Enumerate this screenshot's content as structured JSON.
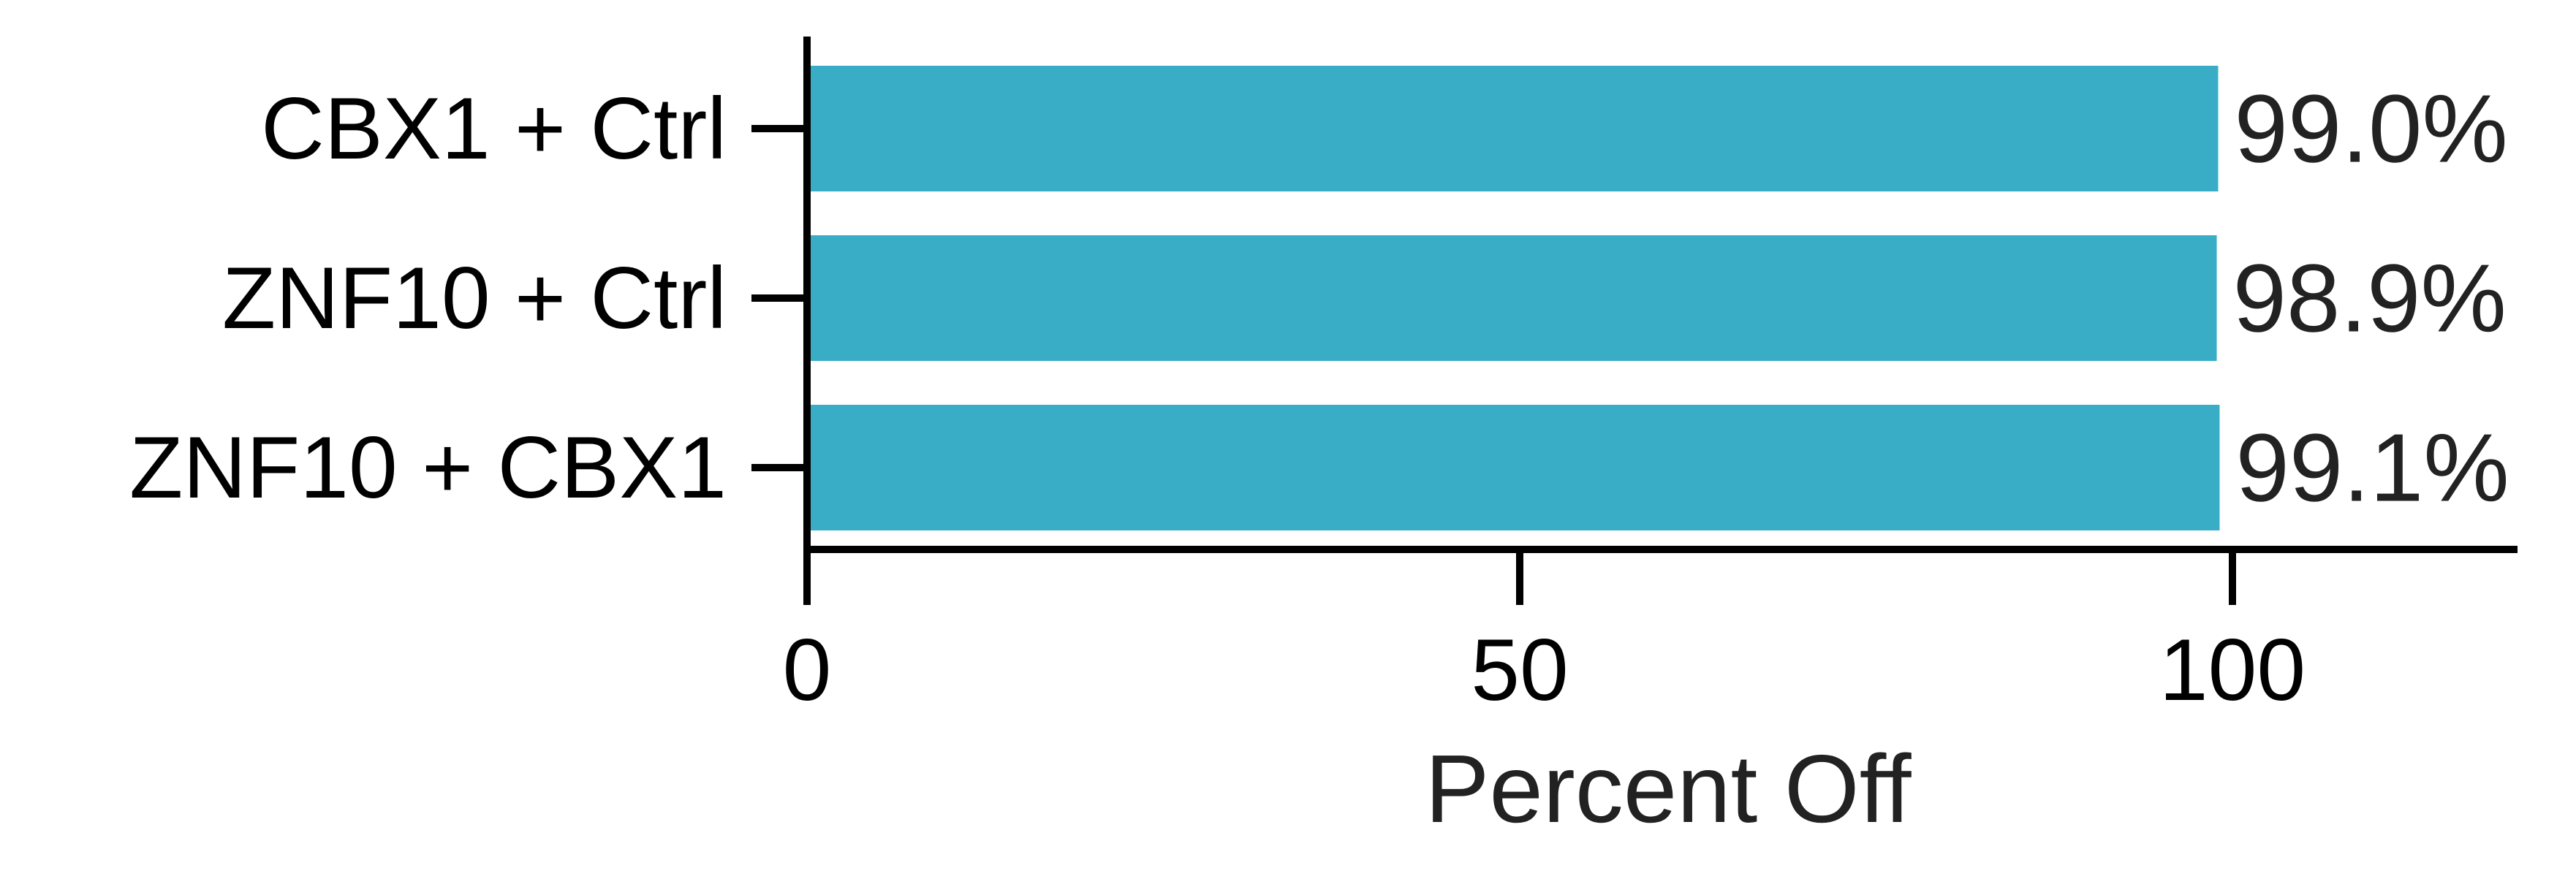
{
  "chart_data": {
    "type": "bar",
    "orientation": "horizontal",
    "categories": [
      "CBX1 + Ctrl",
      "ZNF10 + Ctrl",
      "ZNF10 + CBX1"
    ],
    "values": [
      99.0,
      98.9,
      99.1
    ],
    "value_labels": [
      "99.0%",
      "98.9%",
      "99.1%"
    ],
    "title": "",
    "xlabel": "Percent Off",
    "ylabel": "",
    "xlim": [
      0,
      120
    ],
    "xticks": [
      0,
      50,
      100
    ],
    "xtick_labels": [
      "0",
      "50",
      "100"
    ],
    "grid": false,
    "colors": {
      "bar": "#3AADC6",
      "axis": "#000000",
      "text": "#222222"
    }
  }
}
